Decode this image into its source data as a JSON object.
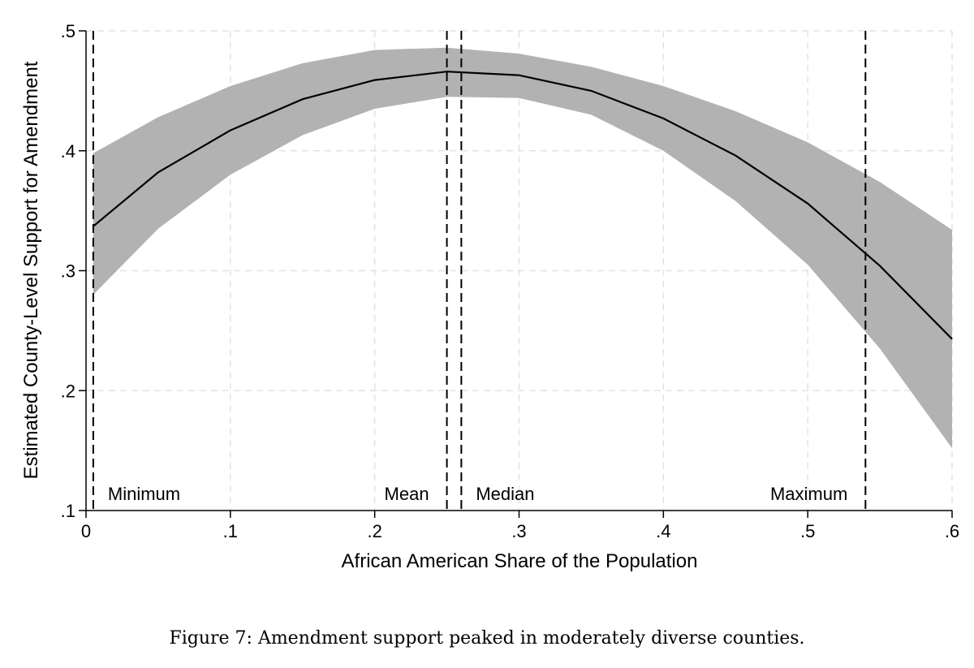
{
  "chart_data": {
    "type": "line",
    "xlabel": "African American Share of the Population",
    "ylabel": "Estimated County-Level Support for Amendment",
    "xlim": [
      0,
      0.6
    ],
    "ylim": [
      0.1,
      0.5
    ],
    "x_ticks": [
      0,
      0.1,
      0.2,
      0.3,
      0.4,
      0.5,
      0.6
    ],
    "x_tick_labels": [
      "0",
      ".1",
      ".2",
      ".3",
      ".4",
      ".5",
      ".6"
    ],
    "y_ticks": [
      0.1,
      0.2,
      0.3,
      0.4,
      0.5
    ],
    "y_tick_labels": [
      ".1",
      ".2",
      ".3",
      ".4",
      ".5"
    ],
    "grid": true,
    "series": [
      {
        "x": [
          0.005,
          0.05,
          0.1,
          0.15,
          0.2,
          0.25,
          0.3,
          0.35,
          0.4,
          0.45,
          0.5,
          0.55,
          0.6
        ],
        "y": [
          0.337,
          0.382,
          0.417,
          0.443,
          0.459,
          0.466,
          0.463,
          0.45,
          0.427,
          0.396,
          0.356,
          0.304,
          0.243
        ],
        "lower": [
          0.28,
          0.335,
          0.38,
          0.413,
          0.435,
          0.445,
          0.444,
          0.43,
          0.4,
          0.358,
          0.305,
          0.235,
          0.152
        ],
        "upper": [
          0.398,
          0.428,
          0.454,
          0.473,
          0.484,
          0.486,
          0.481,
          0.47,
          0.454,
          0.433,
          0.407,
          0.374,
          0.334
        ]
      }
    ],
    "reference_lines": [
      {
        "x": 0.005,
        "label": "Minimum",
        "label_side": "right"
      },
      {
        "x": 0.25,
        "label": "Mean",
        "label_side": "left"
      },
      {
        "x": 0.26,
        "label": "Median",
        "label_side": "right"
      },
      {
        "x": 0.54,
        "label": "Maximum",
        "label_side": "left"
      }
    ],
    "colors": {
      "band": "#b2b2b2",
      "line": "#000000",
      "grid": "#e3e3e3"
    }
  },
  "caption": "Figure 7: Amendment support peaked in moderately diverse counties."
}
